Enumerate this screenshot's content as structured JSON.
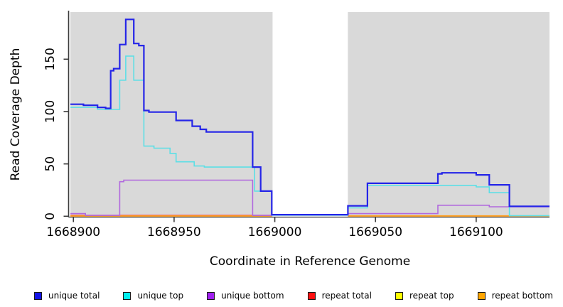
{
  "chart_data": {
    "type": "line",
    "subtype": "step",
    "title": "",
    "xlabel": "Coordinate in Reference Genome",
    "ylabel": "Read Coverage Depth",
    "xlim": [
      1668898.5,
      1669136.4
    ],
    "ylim": [
      0,
      195
    ],
    "xticks": [
      1668900,
      1668950,
      1669000,
      1669050,
      1669100
    ],
    "yticks": [
      0,
      50,
      100,
      150
    ],
    "grid": false,
    "panel_color": "#D9D9D9",
    "axis_color": "#3c3c3c",
    "background_panels": [
      {
        "x0": 1668898.5,
        "x1": 1668998.9
      },
      {
        "x0": 1669036.3,
        "x1": 1669136.4
      }
    ],
    "series": [
      {
        "name": "repeat total",
        "color": "#E8547A",
        "width": 1.3,
        "segments": [
          [
            [
              1668898.5,
              1
            ],
            [
              1668998.5,
              1
            ]
          ]
        ]
      },
      {
        "name": "repeat top",
        "color": "#FFFF33",
        "width": 1.3,
        "segments": [
          [
            [
              1668898.5,
              0.3
            ],
            [
              1668998.5,
              0.3
            ]
          ],
          [
            [
              1669036.3,
              0.3
            ],
            [
              1669136.4,
              0.3
            ]
          ]
        ]
      },
      {
        "name": "repeat bottom",
        "color": "#FF9E1F",
        "width": 2,
        "segments": [
          [
            [
              1668898.5,
              0.3
            ],
            [
              1668998.5,
              0.3
            ]
          ],
          [
            [
              1669036.3,
              0.3
            ],
            [
              1669136.4,
              0.3
            ]
          ]
        ]
      },
      {
        "name": "unique bottom",
        "color": "#B169DE",
        "width": 1.6,
        "segments": [
          [
            [
              1668898.5,
              2.5
            ],
            [
              1668906,
              0.8
            ],
            [
              1668923,
              33
            ],
            [
              1668925,
              34.5
            ],
            [
              1668989,
              0.8
            ],
            [
              1668998.5,
              1.5
            ],
            [
              1669036.3,
              2.5
            ],
            [
              1669081,
              10.5
            ],
            [
              1669106.5,
              9
            ],
            [
              1669136.4,
              9
            ]
          ]
        ]
      },
      {
        "name": "unique top",
        "color": "#5CDFE6",
        "width": 1.6,
        "segments": [
          [
            [
              1668898.5,
              104
            ],
            [
              1668912,
              102
            ],
            [
              1668923,
              130
            ],
            [
              1668926,
              153
            ],
            [
              1668930,
              130
            ],
            [
              1668935,
              67
            ],
            [
              1668940,
              65
            ],
            [
              1668948,
              60
            ],
            [
              1668951,
              52
            ],
            [
              1668960,
              48
            ],
            [
              1668965,
              47
            ],
            [
              1668990,
              24
            ],
            [
              1668998.5,
              1
            ],
            [
              1669036.3,
              8
            ],
            [
              1669046,
              29.5
            ],
            [
              1669100,
              28
            ],
            [
              1669106.5,
              22.5
            ],
            [
              1669116.5,
              0.5
            ],
            [
              1669136.4,
              0.5
            ]
          ]
        ]
      },
      {
        "name": "unique total",
        "color": "#2525E8",
        "width": 2.2,
        "segments": [
          [
            [
              1668898.5,
              107
            ],
            [
              1668905,
              106
            ],
            [
              1668912,
              104
            ],
            [
              1668916,
              103
            ],
            [
              1668918.5,
              139
            ],
            [
              1668920,
              141
            ],
            [
              1668923,
              164
            ],
            [
              1668926,
              188
            ],
            [
              1668930,
              165
            ],
            [
              1668932.5,
              163
            ],
            [
              1668935,
              101
            ],
            [
              1668937.5,
              99.5
            ],
            [
              1668951,
              91.5
            ],
            [
              1668959,
              86
            ],
            [
              1668963,
              83
            ],
            [
              1668966,
              80.5
            ],
            [
              1668989,
              47
            ],
            [
              1668993,
              24
            ],
            [
              1668998.5,
              1.5
            ],
            [
              1669036.3,
              10
            ],
            [
              1669046,
              31.5
            ],
            [
              1669081,
              40.5
            ],
            [
              1669083,
              41.5
            ],
            [
              1669100,
              39.5
            ],
            [
              1669106.5,
              30
            ],
            [
              1669116.5,
              9.5
            ],
            [
              1669136.4,
              9.5
            ]
          ]
        ]
      }
    ]
  },
  "legend": {
    "items": [
      {
        "label": "unique total",
        "color": "#1414E8"
      },
      {
        "label": "unique top",
        "color": "#00F0F0"
      },
      {
        "label": "unique bottom",
        "color": "#A020F0"
      },
      {
        "label": "repeat total",
        "color": "#FF1111"
      },
      {
        "label": "repeat top",
        "color": "#FFFF00"
      },
      {
        "label": "repeat bottom",
        "color": "#FFA500"
      }
    ]
  }
}
